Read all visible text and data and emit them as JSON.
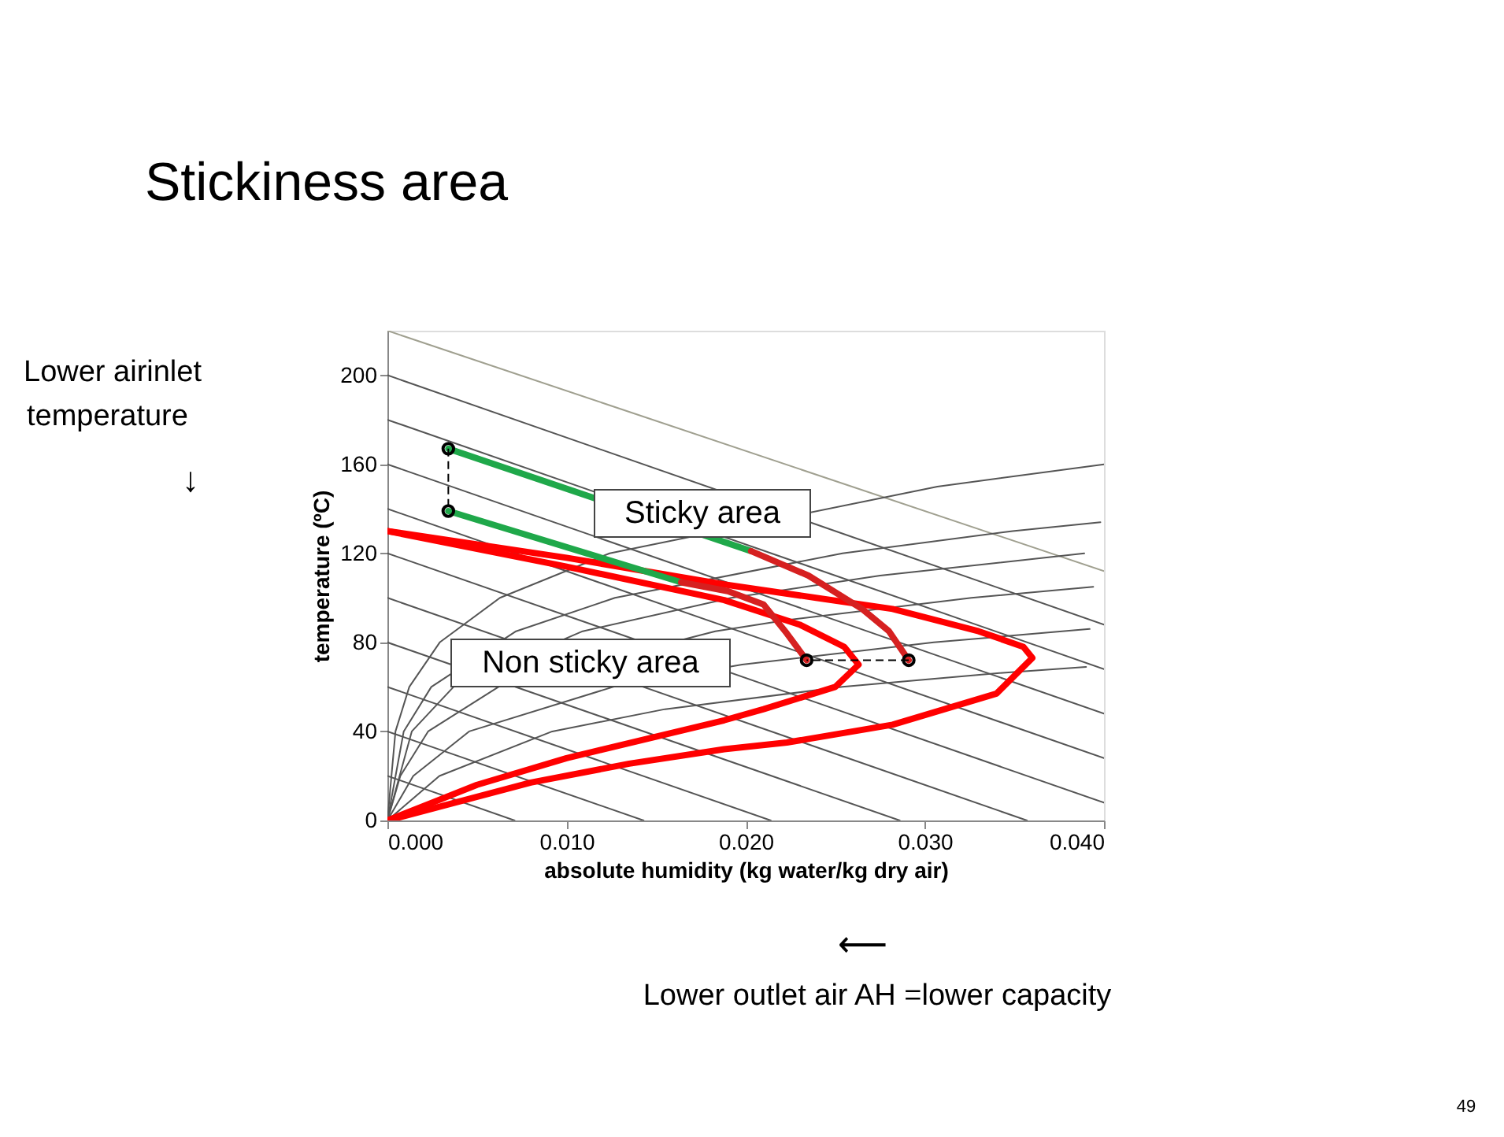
{
  "chart_data": {
    "type": "line",
    "title": "Stickiness area",
    "xlabel": "absolute humidity (kg water/kg dry air)",
    "ylabel": "temperature (ºC)",
    "xlim": [
      0,
      0.04
    ],
    "ylim": [
      0,
      220
    ],
    "xticks": [
      {
        "value": 0,
        "label": "0.000"
      },
      {
        "value": 0.01,
        "label": "0.010"
      },
      {
        "value": 0.02,
        "label": "0.020"
      },
      {
        "value": 0.03,
        "label": "0.030"
      },
      {
        "value": 0.04,
        "label": "0.040"
      }
    ],
    "yticks": [
      0,
      40,
      80,
      120,
      160,
      200
    ],
    "grid": false,
    "series": [
      {
        "color": "#a0a090",
        "x": [
          0,
          0.04
        ],
        "values": [
          220,
          112
        ]
      },
      {
        "color": "#555555",
        "x": [
          0,
          0.04
        ],
        "values": [
          200,
          88
        ]
      },
      {
        "color": "#555555",
        "x": [
          0,
          0.04
        ],
        "values": [
          180,
          68
        ]
      },
      {
        "color": "#555555",
        "x": [
          0,
          0.04
        ],
        "values": [
          160,
          48
        ]
      },
      {
        "color": "#555555",
        "x": [
          0,
          0.04
        ],
        "values": [
          140,
          28
        ]
      },
      {
        "color": "#555555",
        "x": [
          0,
          0.04
        ],
        "values": [
          120,
          8
        ]
      },
      {
        "color": "#555555",
        "x": [
          0,
          0.0357
        ],
        "values": [
          100,
          0
        ]
      },
      {
        "color": "#555555",
        "x": [
          0,
          0.0286
        ],
        "values": [
          80,
          0
        ]
      },
      {
        "color": "#555555",
        "x": [
          0,
          0.0214
        ],
        "values": [
          60,
          0
        ]
      },
      {
        "color": "#555555",
        "x": [
          0,
          0.0143
        ],
        "values": [
          40,
          0
        ]
      },
      {
        "color": "#555555",
        "x": [
          0,
          0.0071
        ],
        "values": [
          20,
          0
        ]
      },
      {
        "color": "#555555",
        "x": [
          0,
          0.00045,
          0.00122,
          0.00292,
          0.00628,
          0.0124,
          0.0307,
          0.04
        ],
        "values": [
          0,
          40,
          60,
          80,
          100,
          120,
          150,
          160
        ]
      },
      {
        "color": "#555555",
        "x": [
          0,
          0.00091,
          0.00245,
          0.00718,
          0.0127,
          0.0254,
          0.0349,
          0.0398
        ],
        "values": [
          0,
          40,
          60,
          85,
          100,
          120,
          130,
          134
        ]
      },
      {
        "color": "#555555",
        "x": [
          0,
          0.00136,
          0.00369,
          0.0109,
          0.0192,
          0.0275,
          0.0389
        ],
        "values": [
          0,
          40,
          60,
          85,
          100,
          110,
          120
        ]
      },
      {
        "color": "#555555",
        "x": [
          0,
          0.00072,
          0.00227,
          0.0062,
          0.0183,
          0.0223,
          0.0326,
          0.0394
        ],
        "values": [
          0,
          20,
          40,
          60,
          85,
          90,
          100,
          105
        ]
      },
      {
        "color": "#555555",
        "x": [
          0,
          0.00144,
          0.00456,
          0.0126,
          0.0198,
          0.0305,
          0.0392
        ],
        "values": [
          0,
          20,
          40,
          60,
          70,
          80,
          86
        ]
      },
      {
        "color": "#555555",
        "x": [
          0,
          0.0029,
          0.0092,
          0.0155,
          0.0254,
          0.0338,
          0.039
        ],
        "values": [
          0,
          20,
          40,
          50,
          60,
          66,
          69
        ]
      },
      {
        "color": "#ff0000",
        "x": [
          0,
          0.01,
          0.0188,
          0.023,
          0.0255,
          0.0263,
          0.025,
          0.021,
          0.0188,
          0.01,
          0.005,
          0
        ],
        "values": [
          130,
          114,
          99,
          88,
          78,
          70,
          60,
          50,
          45,
          28,
          16,
          0
        ]
      },
      {
        "color": "#ff0000",
        "x": [
          0,
          0.01,
          0.0188,
          0.0282,
          0.033,
          0.0355,
          0.036,
          0.034,
          0.0282,
          0.0223,
          0.0188,
          0.0135,
          0.008,
          0
        ],
        "values": [
          130,
          118,
          106,
          95,
          85,
          78,
          73,
          57,
          43,
          35,
          32,
          25.5,
          17,
          0
        ]
      },
      {
        "color": "#1fa84a",
        "x": [
          0.0034,
          0.0203
        ],
        "values": [
          167,
          121
        ]
      },
      {
        "color": "#1fa84a",
        "x": [
          0.0034,
          0.0164
        ],
        "values": [
          139,
          107
        ]
      },
      {
        "color": "#d62020",
        "x": [
          0.0203,
          0.0235,
          0.0265,
          0.028,
          0.0291
        ],
        "values": [
          121,
          110,
          95,
          85,
          72
        ]
      },
      {
        "color": "#d62020",
        "x": [
          0.0164,
          0.019,
          0.021,
          0.0223,
          0.0234
        ],
        "values": [
          107,
          103,
          97,
          84,
          72
        ]
      },
      {
        "color": "#000000",
        "line_style": "dashed",
        "x": [
          0.0034,
          0.0034
        ],
        "values": [
          167,
          139
        ]
      },
      {
        "color": "#000000",
        "line_style": "dashed",
        "x": [
          0.0291,
          0.0234
        ],
        "values": [
          72,
          72
        ]
      },
      {
        "type": "scatter",
        "marker": "circle",
        "color": "#000000",
        "x": [
          0.0034,
          0.0034,
          0.0291,
          0.0234
        ],
        "values": [
          167,
          139,
          72,
          72
        ]
      }
    ],
    "annotations": [
      "Lower airinlet",
      "temperature",
      "↓",
      "⟵",
      "Lower outlet air AH =lower capacity",
      "49",
      "Sticky area",
      "Non sticky area"
    ]
  }
}
